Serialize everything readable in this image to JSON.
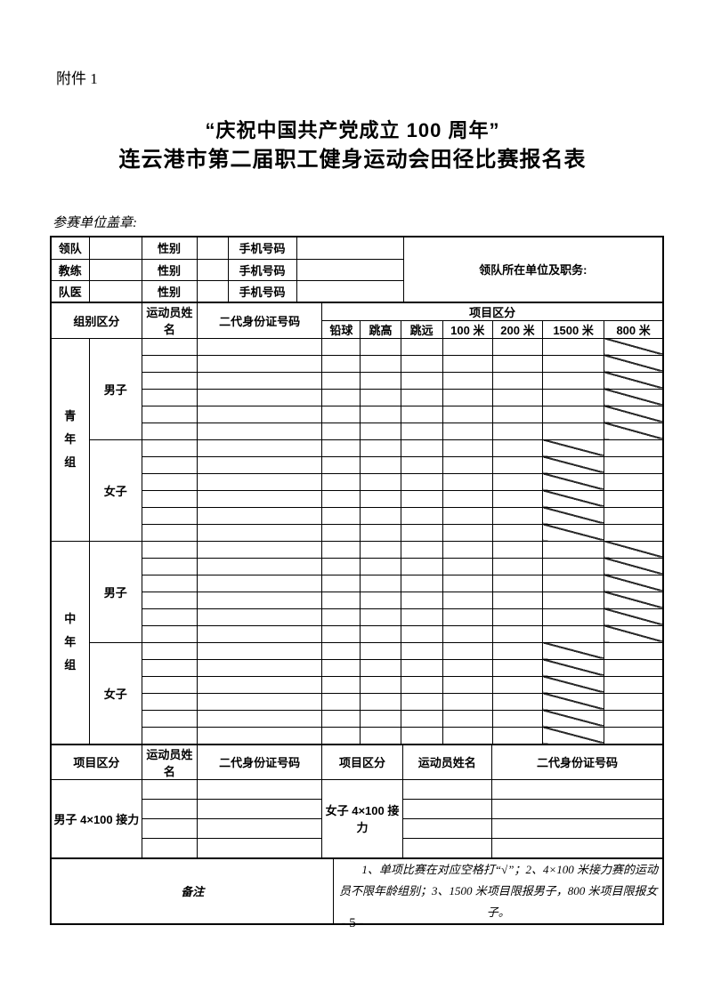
{
  "page": {
    "attachment_label": "附件 1",
    "title_line1": "“庆祝中国共产党成立 100 周年”",
    "title_line2": "连云港市第二届职工健身运动会田径比赛报名表",
    "seal_label": "参赛单位盖章:",
    "page_number": "- 5 -"
  },
  "staff": {
    "unit_label": "领队所在单位及职务:",
    "rows": [
      {
        "role": "领队",
        "gender_label": "性别",
        "phone_label": "手机号码"
      },
      {
        "role": "教练",
        "gender_label": "性别",
        "phone_label": "手机号码"
      },
      {
        "role": "队医",
        "gender_label": "性别",
        "phone_label": "手机号码"
      }
    ]
  },
  "group_header": {
    "group_label": "组别区分",
    "athlete_label": "运动员姓名",
    "id_label": "二代身份证号码",
    "event_label": "项目区分",
    "events": [
      "铅球",
      "跳高",
      "跳远",
      "100 米",
      "200 米",
      "1500 米",
      "800 米"
    ]
  },
  "groups": [
    {
      "name": "青年组",
      "subgroups": [
        {
          "name": "男子",
          "rows": 6,
          "blocked_event": "800 米"
        },
        {
          "name": "女子",
          "rows": 6,
          "blocked_event": "1500 米"
        }
      ]
    },
    {
      "name": "中年组",
      "subgroups": [
        {
          "name": "男子",
          "rows": 6,
          "blocked_event": "800 米"
        },
        {
          "name": "女子",
          "rows": 6,
          "blocked_event": "1500 米"
        }
      ]
    }
  ],
  "relay": {
    "header": {
      "event_label": "项目区分",
      "athlete_label": "运动员姓名",
      "id_label": "二代身份证号码"
    },
    "left": {
      "label": "男子 4×100 接力",
      "rows": 4
    },
    "right": {
      "label": "女子 4×100 接力",
      "rows": 4
    }
  },
  "notes": {
    "label": "备注",
    "text": "1、单项比赛在对应空格打“√”；2、4×100 米接力赛的运动员不限年龄组别；3、1500 米项目限报男子，800 米项目限报女子。"
  }
}
